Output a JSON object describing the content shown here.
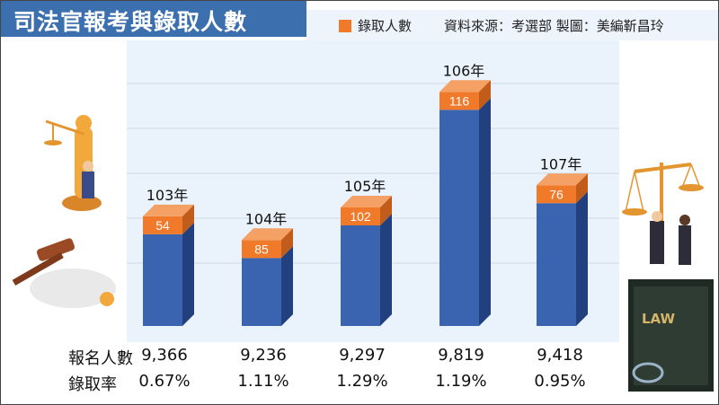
{
  "title": "司法官報考與錄取人數",
  "legend": {
    "label": "錄取人數",
    "color": "#f0792a"
  },
  "source": "資料來源：考選部   製圖：美編靳昌玲",
  "chart_data": {
    "type": "bar",
    "title": "司法官報考與錄取人數",
    "categories": [
      "103年",
      "104年",
      "105年",
      "106年",
      "107年"
    ],
    "series": [
      {
        "name": "錄取人數",
        "values": [
          54,
          85,
          102,
          116,
          76
        ],
        "color": "#f0792a"
      }
    ],
    "bar_color": "#3a63b0",
    "bar_relative_heights": [
      0.74,
      0.58,
      0.8,
      1.58,
      0.95
    ],
    "grid": true,
    "legend_position": "top-right"
  },
  "table": {
    "applicants_label": "報名人數",
    "applicants": [
      "9,366",
      "9,236",
      "9,297",
      "9,819",
      "9,418"
    ],
    "rate_label": "錄取率",
    "rates": [
      "0.67%",
      "1.11%",
      "1.29%",
      "1.19%",
      "0.95%"
    ]
  },
  "book_label": "LAW"
}
